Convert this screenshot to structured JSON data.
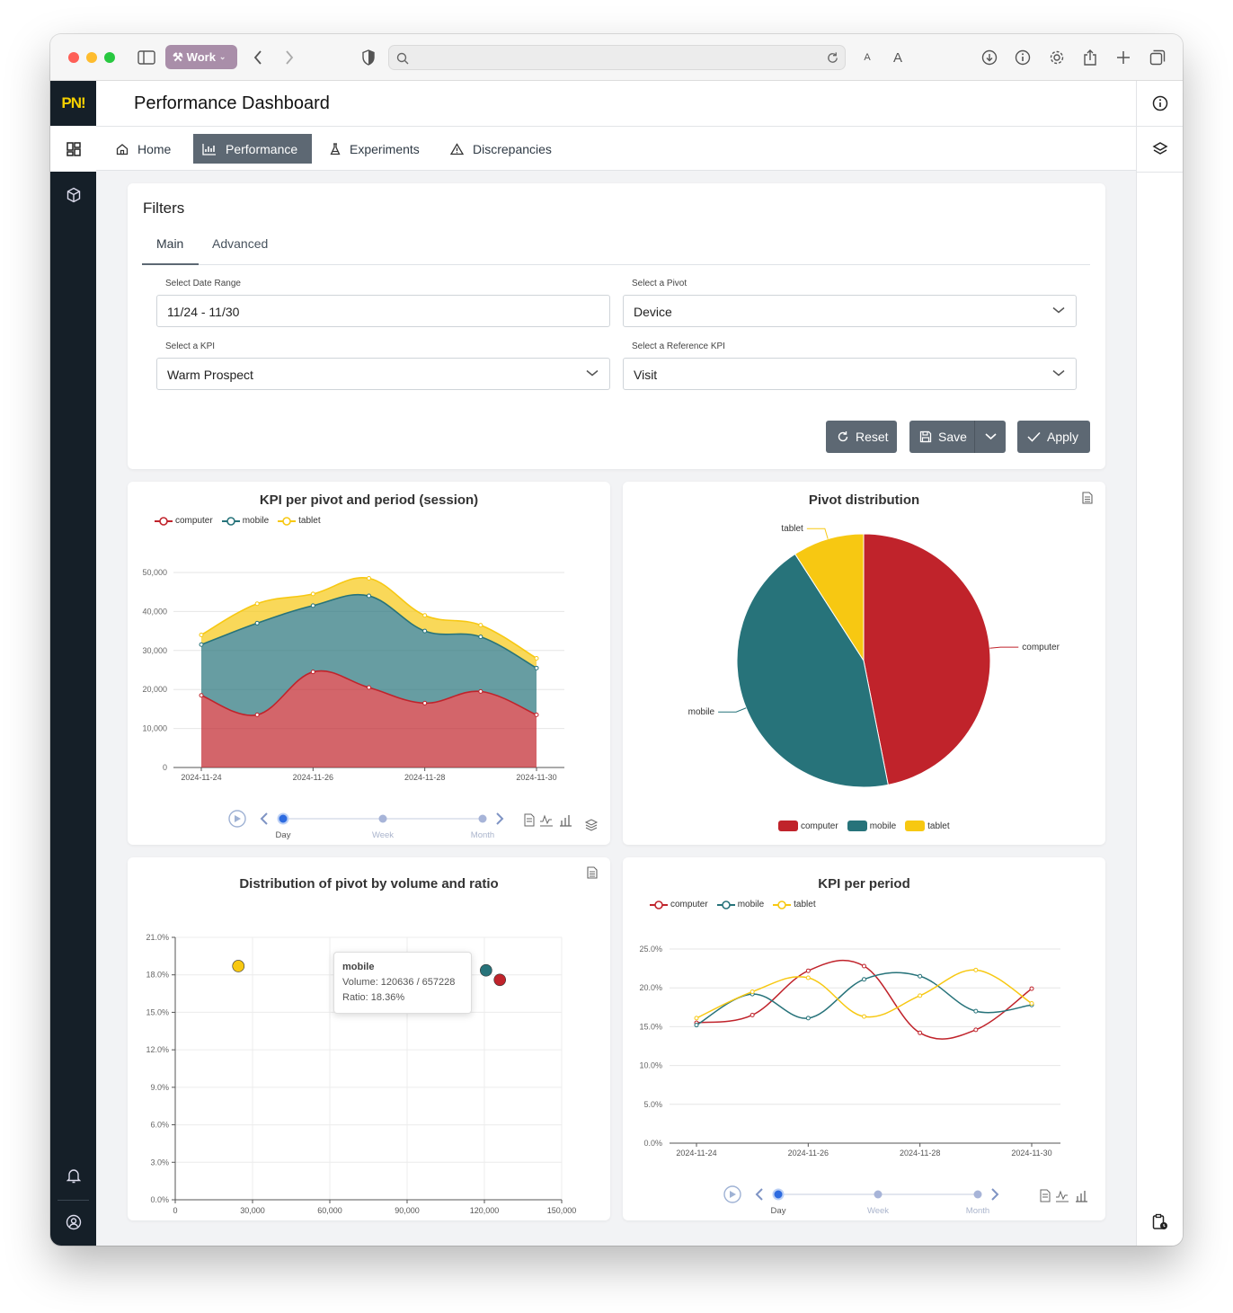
{
  "browser": {
    "profile_label": "Work",
    "text_small": "A",
    "text_large": "A"
  },
  "app": {
    "logo": "PN!",
    "page_title": "Performance Dashboard",
    "nav_tabs": [
      "Home",
      "Performance",
      "Experiments",
      "Discrepancies"
    ],
    "active_tab": "Performance"
  },
  "filters": {
    "title": "Filters",
    "tabs": [
      "Main",
      "Advanced"
    ],
    "date_range": {
      "label": "Select Date Range",
      "value": "11/24 - 11/30"
    },
    "pivot": {
      "label": "Select a Pivot",
      "value": "Device"
    },
    "kpi": {
      "label": "Select a KPI",
      "value": "Warm Prospect"
    },
    "reference_kpi": {
      "label": "Select a Reference KPI",
      "value": "Visit"
    },
    "buttons": {
      "reset": "Reset",
      "save": "Save",
      "apply": "Apply"
    }
  },
  "colors": {
    "computer": "#c0232b",
    "mobile": "#27737a",
    "tablet": "#f7c812",
    "accent": "#5d6873"
  },
  "period_selector": {
    "options": [
      "Day",
      "Week",
      "Month"
    ],
    "selected": "Day"
  },
  "chart_data": [
    {
      "type": "area",
      "title": "KPI per pivot and period (session)",
      "series_names": [
        "computer",
        "mobile",
        "tablet"
      ],
      "x": [
        "2024-11-24",
        "2024-11-25",
        "2024-11-26",
        "2024-11-27",
        "2024-11-28",
        "2024-11-29",
        "2024-11-30"
      ],
      "x_tick_labels": [
        "2024-11-24",
        "2024-11-26",
        "2024-11-28",
        "2024-11-30"
      ],
      "stacked": true,
      "series": [
        {
          "name": "computer",
          "values": [
            18500,
            13500,
            24500,
            20500,
            16500,
            19500,
            13500
          ]
        },
        {
          "name": "mobile",
          "values": [
            13000,
            23500,
            17000,
            23500,
            18500,
            14000,
            12000
          ]
        },
        {
          "name": "tablet",
          "values": [
            2500,
            5000,
            3000,
            4500,
            4000,
            3000,
            2500
          ]
        }
      ],
      "y_ticks": [
        "0",
        "10,000",
        "20,000",
        "30,000",
        "40,000",
        "50,000"
      ],
      "ylim": [
        0,
        50000
      ]
    },
    {
      "type": "pie",
      "title": "Pivot distribution",
      "labels": [
        "computer",
        "mobile",
        "tablet"
      ],
      "values": [
        46.9,
        44.0,
        9.1
      ]
    },
    {
      "type": "scatter",
      "title": "Distribution of pivot by volume and ratio",
      "points": [
        {
          "name": "tablet",
          "x": 24500,
          "y": 18.7
        },
        {
          "name": "mobile",
          "x": 120636,
          "y": 18.36
        },
        {
          "name": "computer",
          "x": 126000,
          "y": 17.6
        }
      ],
      "x_ticks": [
        "0",
        "30,000",
        "60,000",
        "90,000",
        "120,000",
        "150,000"
      ],
      "y_ticks": [
        "0.0%",
        "3.0%",
        "6.0%",
        "9.0%",
        "12.0%",
        "15.0%",
        "18.0%",
        "21.0%"
      ],
      "xlim": [
        0,
        150000
      ],
      "ylim": [
        0,
        21
      ],
      "tooltip": {
        "title": "mobile",
        "line1": "Volume: 120636 / 657228",
        "line2": "Ratio: 18.36%"
      }
    },
    {
      "type": "line",
      "title": "KPI per period",
      "series_names": [
        "computer",
        "mobile",
        "tablet"
      ],
      "x": [
        "2024-11-24",
        "2024-11-25",
        "2024-11-26",
        "2024-11-27",
        "2024-11-28",
        "2024-11-29",
        "2024-11-30"
      ],
      "x_tick_labels": [
        "2024-11-24",
        "2024-11-26",
        "2024-11-28",
        "2024-11-30"
      ],
      "series": [
        {
          "name": "computer",
          "values": [
            15.5,
            16.5,
            22.2,
            22.8,
            14.2,
            14.6,
            19.9
          ]
        },
        {
          "name": "mobile",
          "values": [
            15.2,
            19.2,
            16.1,
            21.1,
            21.5,
            17.0,
            17.8
          ]
        },
        {
          "name": "tablet",
          "values": [
            16.1,
            19.5,
            21.3,
            16.3,
            19.0,
            22.3,
            18.0
          ]
        }
      ],
      "y_ticks": [
        "0.0%",
        "5.0%",
        "10.0%",
        "15.0%",
        "20.0%",
        "25.0%"
      ],
      "ylim": [
        0,
        25
      ]
    }
  ]
}
